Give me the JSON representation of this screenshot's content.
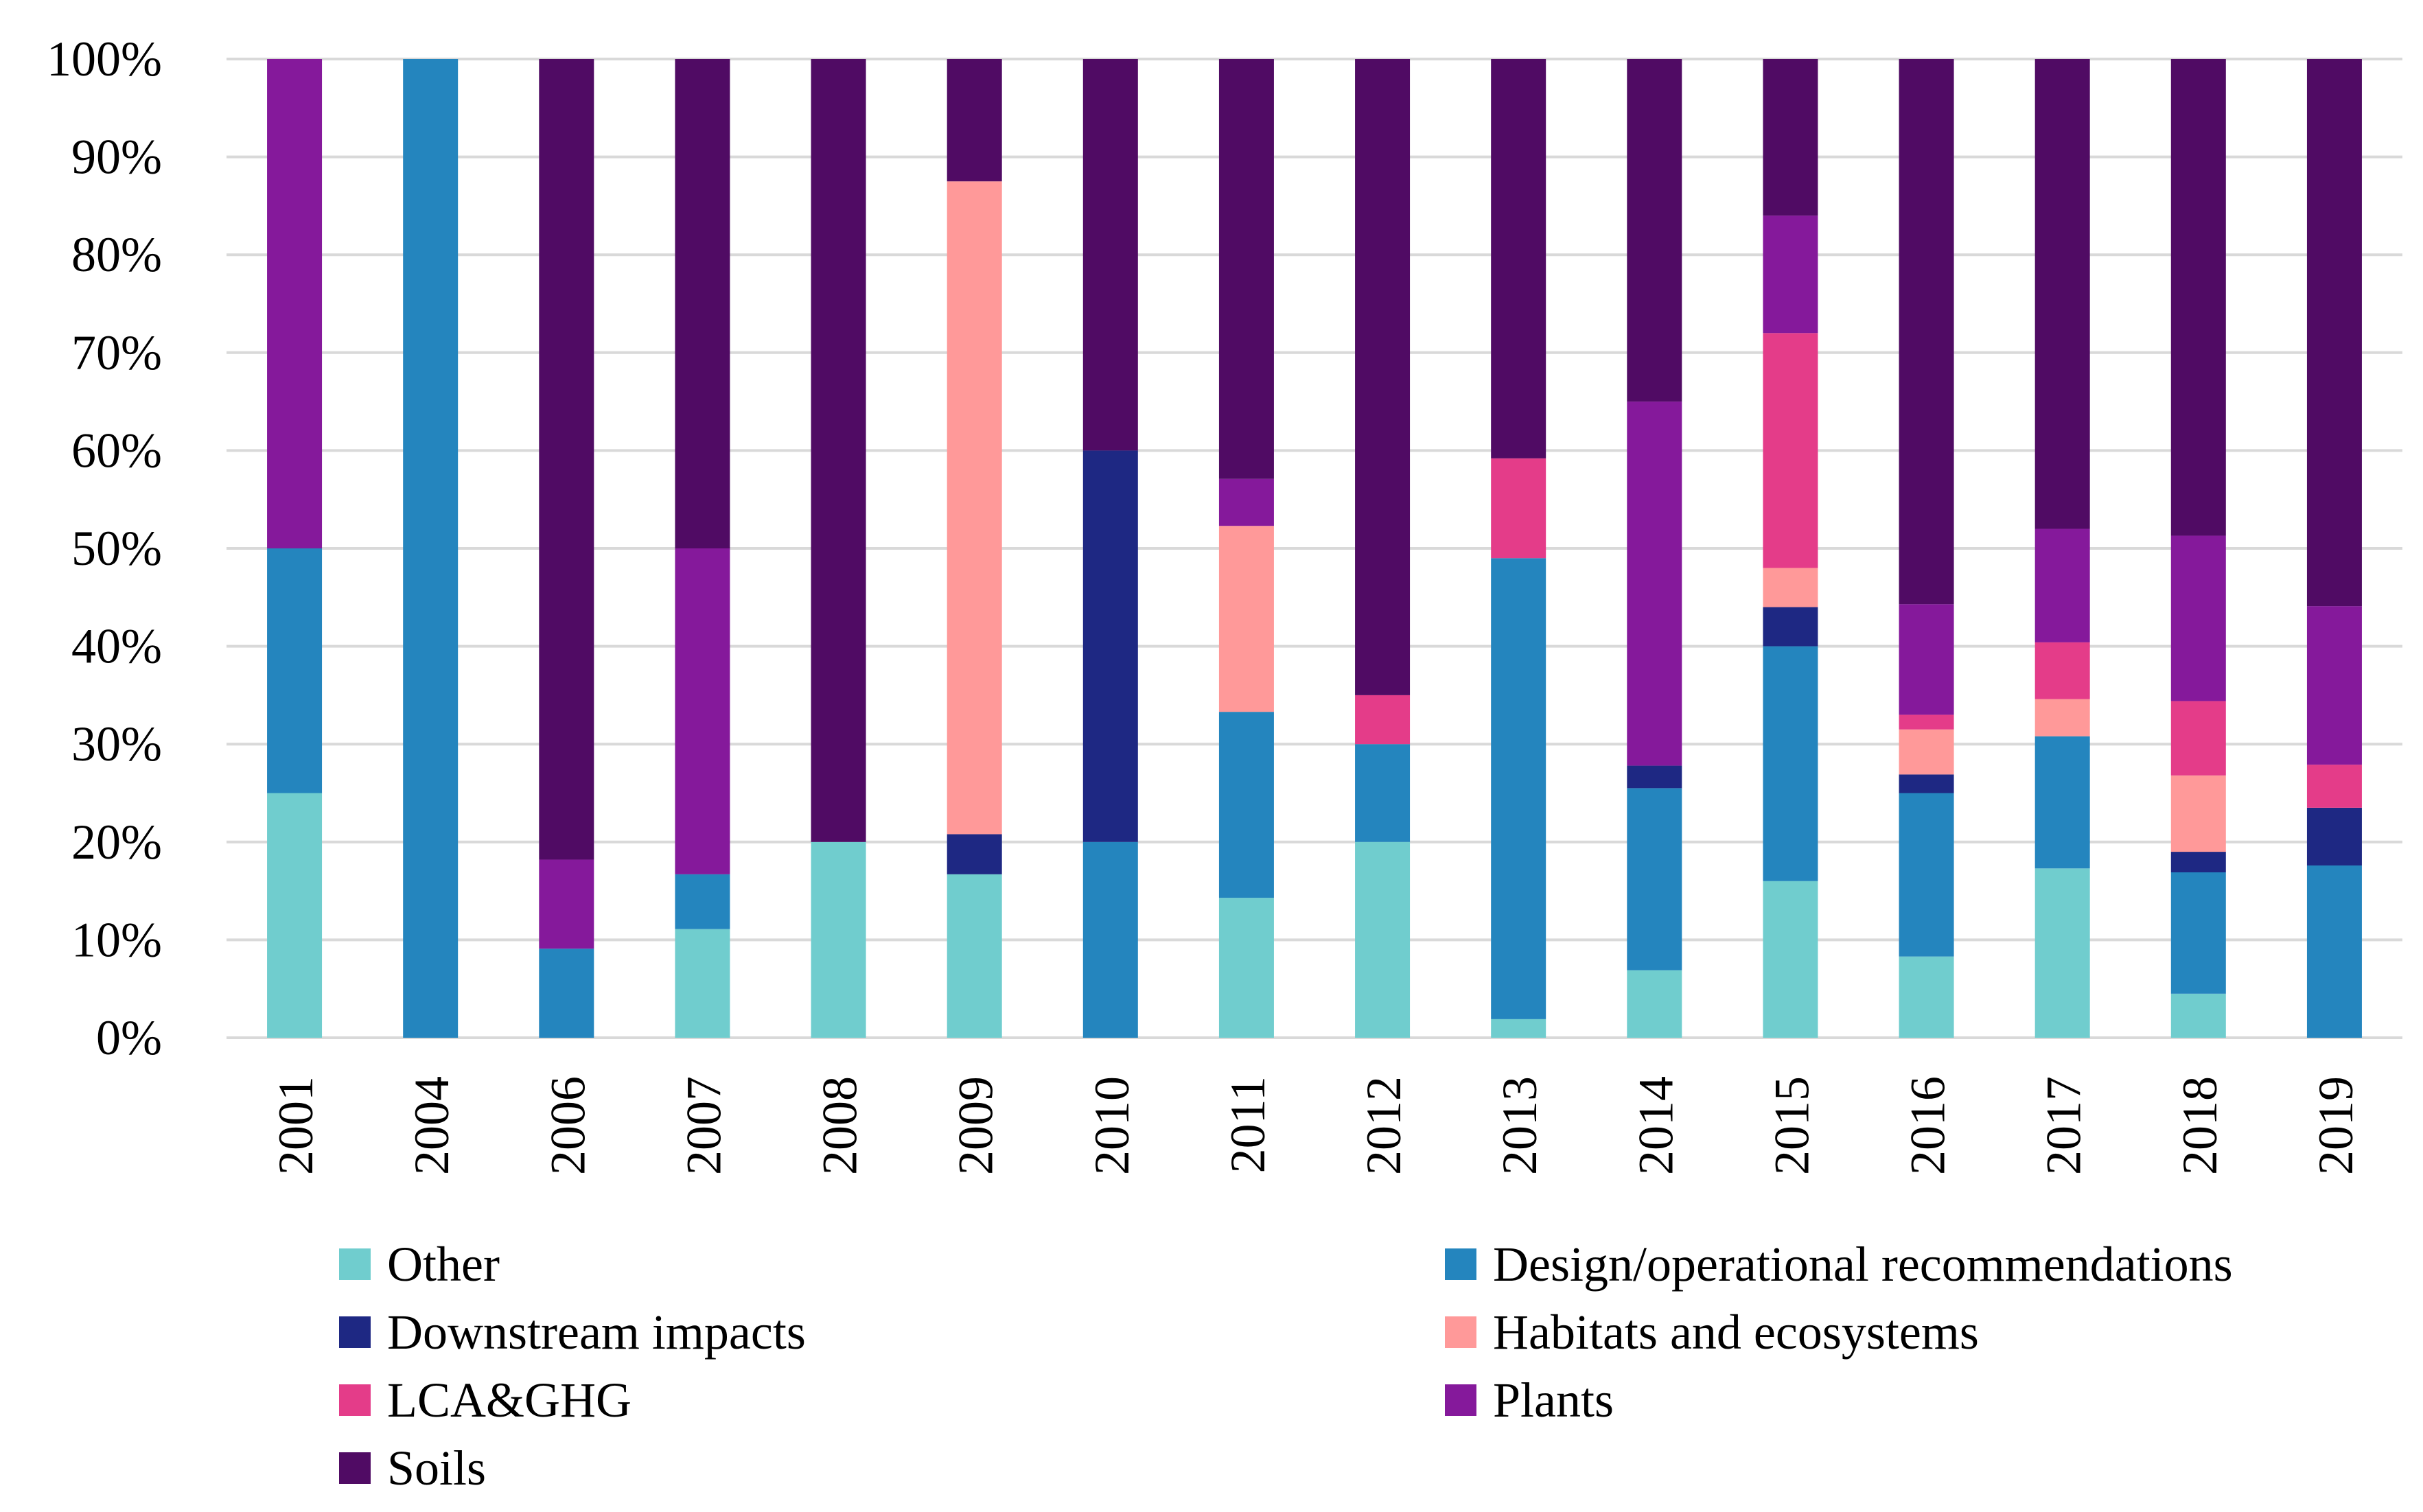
{
  "chart_data": {
    "type": "bar",
    "stacked": "percent",
    "title": "",
    "xlabel": "",
    "ylabel": "",
    "ylim": [
      0,
      100
    ],
    "y_ticks": [
      "0%",
      "10%",
      "20%",
      "30%",
      "40%",
      "50%",
      "60%",
      "70%",
      "80%",
      "90%",
      "100%"
    ],
    "grid": true,
    "legend_position": "bottom",
    "categories": [
      "2001",
      "2004",
      "2006",
      "2007",
      "2008",
      "2009",
      "2010",
      "2011",
      "2012",
      "2013",
      "2014",
      "2015",
      "2016",
      "2017",
      "2018",
      "2019"
    ],
    "series": [
      {
        "name": "Other",
        "color": "#70CDCE",
        "values": [
          25,
          0,
          0,
          11.1,
          20,
          16.7,
          0,
          14.3,
          20,
          1.9,
          6.9,
          16,
          8.3,
          17.3,
          4.5,
          0
        ]
      },
      {
        "name": "Design/operational recommendations",
        "color": "#2485BE",
        "values": [
          25,
          100,
          9.1,
          5.6,
          0,
          0,
          20,
          19,
          10,
          47.1,
          18.6,
          24,
          16.7,
          13.5,
          12.4,
          17.6
        ]
      },
      {
        "name": "Downstream impacts",
        "color": "#1E2883",
        "values": [
          0,
          0,
          0,
          0,
          0,
          4.1,
          40,
          0,
          0,
          0,
          2.3,
          4,
          1.9,
          0,
          2.1,
          5.9
        ]
      },
      {
        "name": "Habitats and ecosystems",
        "color": "#FF9999",
        "values": [
          0,
          0,
          0,
          0,
          0,
          66.7,
          0,
          19,
          0,
          0,
          0,
          4,
          4.6,
          3.8,
          7.8,
          0
        ]
      },
      {
        "name": "LCA&GHG",
        "color": "#E43C89",
        "values": [
          0,
          0,
          0,
          0,
          0,
          0,
          0,
          0,
          5,
          10.2,
          0,
          24,
          1.5,
          5.8,
          7.6,
          4.4
        ]
      },
      {
        "name": "Plants",
        "color": "#85199B",
        "values": [
          50,
          0,
          9.1,
          33.3,
          0,
          0,
          0,
          4.8,
          0,
          0,
          37.2,
          12,
          11.3,
          11.6,
          16.9,
          16.2
        ]
      },
      {
        "name": "Soils",
        "color": "#500B64",
        "values": [
          0,
          0,
          81.8,
          50,
          80,
          12.5,
          40,
          42.9,
          65,
          40.8,
          35,
          16,
          55.7,
          48,
          48.7,
          55.9
        ]
      }
    ]
  },
  "legend": {
    "items": [
      "Other",
      "Design/operational recommendations",
      "Downstream impacts",
      "Habitats and ecosystems",
      "LCA&GHG",
      "Plants",
      "Soils"
    ]
  }
}
